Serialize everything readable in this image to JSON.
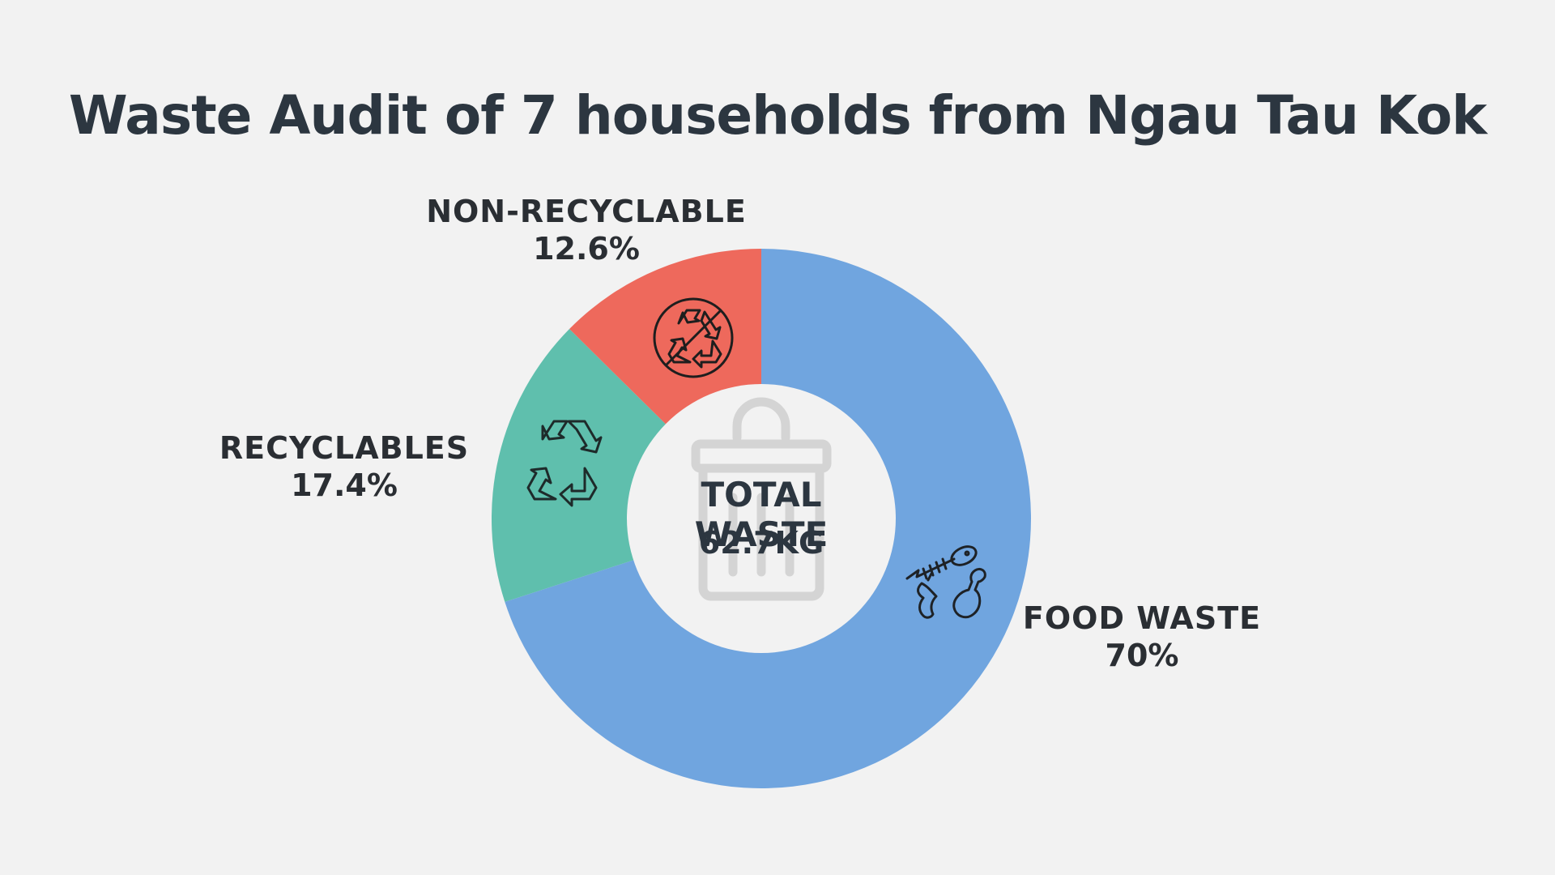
{
  "title": "Waste Audit of 7 households from Ngau Tau Kok",
  "center": {
    "label": "TOTAL WASTE",
    "value": "62.7KG"
  },
  "chart_data": {
    "type": "pie",
    "title": "Waste Audit of 7 households from Ngau Tau Kok",
    "style": "donut",
    "total": "62.7KG",
    "slices": [
      {
        "label": "FOOD WASTE",
        "value": 70,
        "display": "70%",
        "color": "#70a5df",
        "icon": "food-scraps-icon"
      },
      {
        "label": "RECYCLABLES",
        "value": 17.4,
        "display": "17.4%",
        "color": "#5fbfad",
        "icon": "recycle-icon"
      },
      {
        "label": "NON-RECYCLABLE",
        "value": 12.6,
        "display": "12.6%",
        "color": "#ee695c",
        "icon": "no-recycle-icon"
      }
    ]
  },
  "colors": {
    "background": "#f2f2f2",
    "title": "#2c3640",
    "hole": "#f2f2f2",
    "trash_icon": "#d4d4d4"
  }
}
